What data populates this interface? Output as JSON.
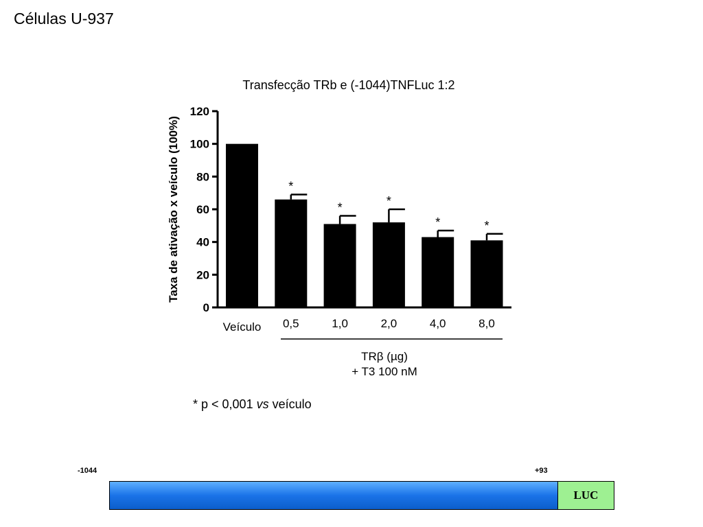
{
  "slide": {
    "title": "Células U-937"
  },
  "chart_data": {
    "type": "bar",
    "title": "Transfecção TRb e (-1044)TNFLuc 1:2",
    "ylabel": "Taxa de ativação x veículo (100%)",
    "ylim": [
      0,
      120
    ],
    "yticks": [
      "0",
      "20",
      "40",
      "60",
      "80",
      "100",
      "120"
    ],
    "categories": [
      "Veículo",
      "0,5",
      "1,0",
      "2,0",
      "4,0",
      "8,0"
    ],
    "values": [
      100,
      66,
      51,
      52,
      43,
      41
    ],
    "error": [
      0,
      3,
      5,
      8,
      4,
      4
    ],
    "significance": [
      "",
      "*",
      "*",
      "*",
      "*",
      "*"
    ],
    "bar_color": "#000000",
    "group_label_line1": "TRβ (µg)",
    "group_label_line2": "+ T3 100 nM",
    "grid": false
  },
  "footnote": {
    "prefix": "* p < 0,001 ",
    "italic": "vs",
    "suffix": " veículo"
  },
  "construct": {
    "start_label": "-1044",
    "end_label": "+93",
    "reporter_label": "LUC",
    "promoter_color": "#1a73e8",
    "reporter_color": "#9ef092"
  }
}
